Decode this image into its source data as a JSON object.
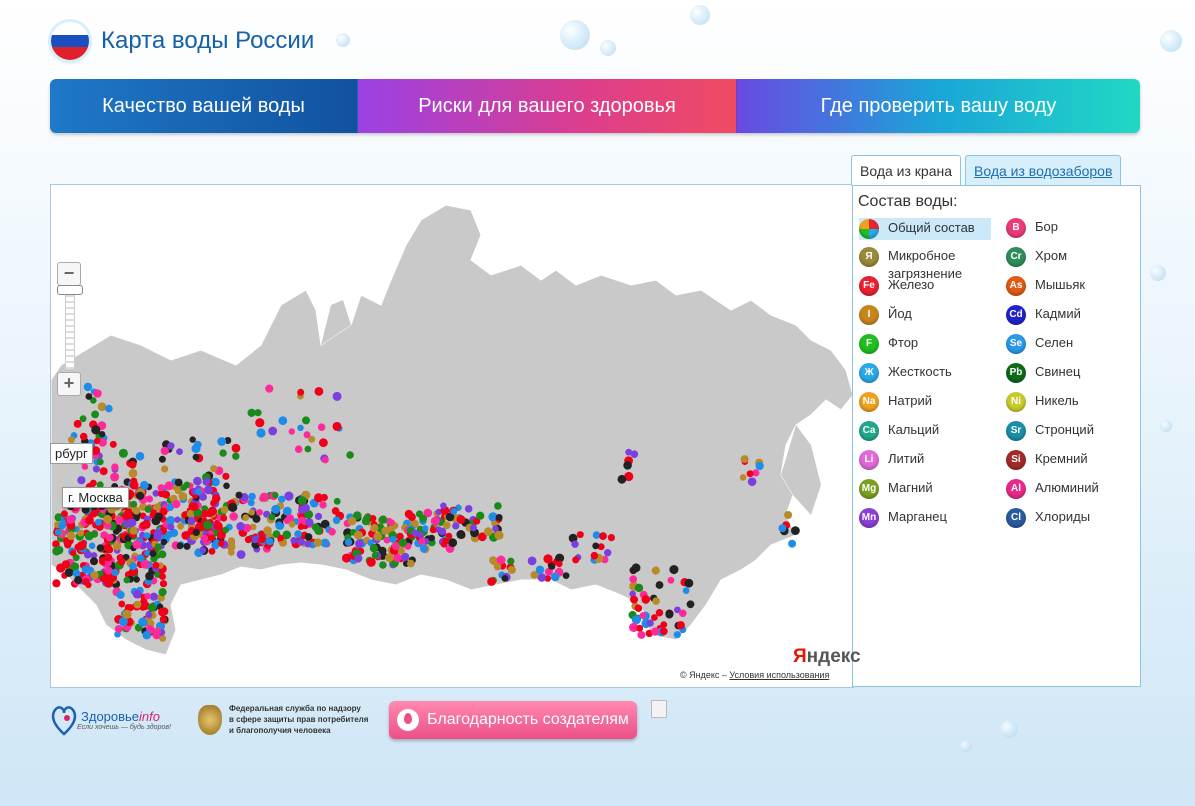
{
  "header": {
    "title": "Карта воды России"
  },
  "nav": {
    "tabs": [
      {
        "label": "Качество вашей воды"
      },
      {
        "label": "Риски для вашего здоровья"
      },
      {
        "label": "Где проверить вашу воду"
      }
    ]
  },
  "map": {
    "labels": {
      "spb": "рбург",
      "moscow": "г. Москва"
    },
    "provider": "Яндекс",
    "copyright_prefix": "© Яндекс –",
    "terms_link": "Условия использования",
    "zoom_in": "+",
    "zoom_out": "−"
  },
  "source_tabs": {
    "tap": "Вода из крана",
    "intake": "Вода из водозаборов"
  },
  "legend": {
    "title": "Состав воды:",
    "items_left": [
      {
        "symbol": "",
        "label": "Общий состав",
        "color": "#f0a030"
      },
      {
        "symbol": "Я",
        "label": "Микробное загрязнение",
        "color": "#9a8a3a"
      },
      {
        "symbol": "Fe",
        "label": "Железо",
        "color": "#e8222f"
      },
      {
        "symbol": "I",
        "label": "Йод",
        "color": "#c9861a"
      },
      {
        "symbol": "F",
        "label": "Фтор",
        "color": "#1fbf1f"
      },
      {
        "symbol": "Ж",
        "label": "Жесткость",
        "color": "#2aa8e8"
      },
      {
        "symbol": "Na",
        "label": "Натрий",
        "color": "#f0a21e"
      },
      {
        "symbol": "Ca",
        "label": "Кальций",
        "color": "#1fa98a"
      },
      {
        "symbol": "Li",
        "label": "Литий",
        "color": "#e06ad8"
      },
      {
        "symbol": "Mg",
        "label": "Магний",
        "color": "#7aa21f"
      },
      {
        "symbol": "Mn",
        "label": "Марганец",
        "color": "#8a3fd8"
      }
    ],
    "items_right": [
      {
        "symbol": "B",
        "label": "Бор",
        "color": "#ee3a7a"
      },
      {
        "symbol": "Cr",
        "label": "Хром",
        "color": "#2e8f5a"
      },
      {
        "symbol": "As",
        "label": "Мышьяк",
        "color": "#e05a14"
      },
      {
        "symbol": "Cd",
        "label": "Кадмий",
        "color": "#2222cc"
      },
      {
        "symbol": "Se",
        "label": "Селен",
        "color": "#2a9ae8"
      },
      {
        "symbol": "Pb",
        "label": "Свинец",
        "color": "#0f6a18"
      },
      {
        "symbol": "Ni",
        "label": "Никель",
        "color": "#c8cc2a"
      },
      {
        "symbol": "Sr",
        "label": "Стронций",
        "color": "#1a8fa8"
      },
      {
        "symbol": "Si",
        "label": "Кремний",
        "color": "#a32a2a"
      },
      {
        "symbol": "Al",
        "label": "Алюминий",
        "color": "#e82a8a"
      },
      {
        "symbol": "Cl",
        "label": "Хлориды",
        "color": "#2a5aa0"
      }
    ]
  },
  "footer": {
    "zdorovie_brand": "Здоровье",
    "zdorovie_brand_suffix": "info",
    "zdorovie_slogan": "Если хочешь — будь здоров!",
    "rospotreb_line1": "Федеральная служба по надзору",
    "rospotreb_line2": "в сфере защиты прав потребителя",
    "rospotreb_line3": "и благополучия человека",
    "thanks_button": "Благодарность создателям"
  },
  "colors": {
    "red": "#f00018",
    "brown": "#b88a2a",
    "purple": "#7b3fe0",
    "blue": "#1e8ce8",
    "green": "#1a8a1a",
    "pink": "#ff2a9a",
    "dark": "#222222"
  }
}
